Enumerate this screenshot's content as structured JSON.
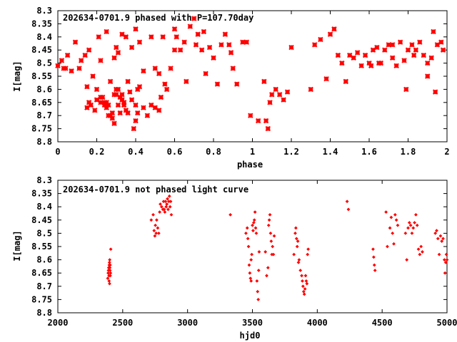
{
  "chart_data": [
    {
      "type": "scatter",
      "title": "202634-0701.9 phased with P=107.70day",
      "xlabel": "phase",
      "ylabel": "I[mag]",
      "xlim": [
        0,
        2
      ],
      "ylim": [
        8.8,
        8.3
      ],
      "y_inverted": true,
      "grid": false,
      "marker": "star",
      "color": "#ff0000",
      "xticks": [
        {
          "value": 0,
          "label": "0"
        },
        {
          "value": 0.2,
          "label": "0.2"
        },
        {
          "value": 0.4,
          "label": "0.4"
        },
        {
          "value": 0.6,
          "label": "0.6"
        },
        {
          "value": 0.8,
          "label": "0.8"
        },
        {
          "value": 1,
          "label": "1"
        },
        {
          "value": 1.2,
          "label": "1.2"
        },
        {
          "value": 1.4,
          "label": "1.4"
        },
        {
          "value": 1.6,
          "label": "1.6"
        },
        {
          "value": 1.8,
          "label": "1.8"
        },
        {
          "value": 2,
          "label": "2"
        }
      ],
      "yticks": [
        {
          "value": 8.3,
          "label": "8.3"
        },
        {
          "value": 8.35,
          "label": "8.35"
        },
        {
          "value": 8.4,
          "label": "8.4"
        },
        {
          "value": 8.45,
          "label": "8.45"
        },
        {
          "value": 8.5,
          "label": "8.5"
        },
        {
          "value": 8.55,
          "label": "8.55"
        },
        {
          "value": 8.6,
          "label": "8.6"
        },
        {
          "value": 8.65,
          "label": "8.65"
        },
        {
          "value": 8.7,
          "label": "8.7"
        },
        {
          "value": 8.75,
          "label": "8.75"
        },
        {
          "value": 8.8,
          "label": "8.8"
        }
      ],
      "points": [
        [
          0.0,
          8.51
        ],
        [
          0.02,
          8.49
        ],
        [
          0.03,
          8.52
        ],
        [
          0.04,
          8.52
        ],
        [
          0.05,
          8.47
        ],
        [
          0.07,
          8.53
        ],
        [
          0.09,
          8.42
        ],
        [
          0.11,
          8.52
        ],
        [
          0.12,
          8.49
        ],
        [
          0.14,
          8.47
        ],
        [
          0.15,
          8.59
        ],
        [
          0.16,
          8.45
        ],
        [
          0.18,
          8.55
        ],
        [
          0.2,
          8.6
        ],
        [
          0.21,
          8.4
        ],
        [
          0.22,
          8.49
        ],
        [
          0.25,
          8.38
        ],
        [
          0.27,
          8.57
        ],
        [
          0.29,
          8.48
        ],
        [
          0.3,
          8.44
        ],
        [
          0.31,
          8.46
        ],
        [
          0.33,
          8.39
        ],
        [
          0.35,
          8.4
        ],
        [
          0.38,
          8.44
        ],
        [
          0.4,
          8.37
        ],
        [
          0.42,
          8.42
        ],
        [
          0.44,
          8.53
        ],
        [
          0.48,
          8.4
        ],
        [
          0.5,
          8.52
        ],
        [
          0.52,
          8.54
        ],
        [
          0.54,
          8.4
        ],
        [
          0.56,
          8.6
        ],
        [
          0.58,
          8.52
        ],
        [
          0.6,
          8.45
        ],
        [
          0.6,
          8.37
        ],
        [
          0.61,
          8.4
        ],
        [
          0.63,
          8.45
        ],
        [
          0.65,
          8.42
        ],
        [
          0.66,
          8.57
        ],
        [
          0.68,
          8.36
        ],
        [
          0.7,
          8.33
        ],
        [
          0.71,
          8.43
        ],
        [
          0.72,
          8.39
        ],
        [
          0.74,
          8.45
        ],
        [
          0.75,
          8.38
        ],
        [
          0.76,
          8.54
        ],
        [
          0.78,
          8.44
        ],
        [
          0.8,
          8.48
        ],
        [
          0.82,
          8.58
        ],
        [
          0.84,
          8.43
        ],
        [
          0.86,
          8.39
        ],
        [
          0.88,
          8.43
        ],
        [
          0.89,
          8.46
        ],
        [
          0.9,
          8.52
        ],
        [
          0.92,
          8.58
        ],
        [
          0.95,
          8.42
        ],
        [
          0.97,
          8.42
        ],
        [
          0.15,
          8.67
        ],
        [
          0.16,
          8.65
        ],
        [
          0.17,
          8.66
        ],
        [
          0.19,
          8.68
        ],
        [
          0.2,
          8.64
        ],
        [
          0.22,
          8.63
        ],
        [
          0.23,
          8.63
        ],
        [
          0.24,
          8.65
        ],
        [
          0.25,
          8.65
        ],
        [
          0.26,
          8.66
        ],
        [
          0.27,
          8.7
        ],
        [
          0.28,
          8.71
        ],
        [
          0.29,
          8.62
        ],
        [
          0.3,
          8.6
        ],
        [
          0.31,
          8.6
        ],
        [
          0.32,
          8.63
        ],
        [
          0.33,
          8.64
        ],
        [
          0.34,
          8.66
        ],
        [
          0.35,
          8.68
        ],
        [
          0.36,
          8.57
        ],
        [
          0.37,
          8.61
        ],
        [
          0.38,
          8.64
        ],
        [
          0.39,
          8.75
        ],
        [
          0.4,
          8.72
        ],
        [
          0.41,
          8.6
        ],
        [
          0.42,
          8.59
        ],
        [
          0.44,
          8.67
        ],
        [
          0.46,
          8.7
        ],
        [
          0.48,
          8.66
        ],
        [
          0.5,
          8.67
        ],
        [
          0.52,
          8.68
        ],
        [
          0.53,
          8.63
        ],
        [
          0.55,
          8.58
        ],
        [
          0.22,
          8.65
        ],
        [
          0.24,
          8.66
        ],
        [
          0.25,
          8.67
        ],
        [
          0.26,
          8.7
        ],
        [
          0.3,
          8.62
        ],
        [
          0.31,
          8.66
        ],
        [
          0.32,
          8.69
        ],
        [
          0.33,
          8.62
        ],
        [
          0.34,
          8.65
        ],
        [
          0.28,
          8.69
        ],
        [
          0.29,
          8.73
        ],
        [
          0.36,
          8.69
        ],
        [
          0.4,
          8.66
        ],
        [
          0.41,
          8.69
        ],
        [
          0.99,
          8.7
        ],
        [
          1.03,
          8.72
        ],
        [
          1.07,
          8.72
        ],
        [
          1.08,
          8.75
        ],
        [
          1.09,
          8.65
        ],
        [
          1.1,
          8.62
        ],
        [
          1.12,
          8.6
        ],
        [
          1.14,
          8.62
        ],
        [
          1.16,
          8.64
        ],
        [
          1.18,
          8.61
        ],
        [
          1.06,
          8.57
        ],
        [
          1.2,
          8.44
        ],
        [
          1.3,
          8.6
        ],
        [
          1.32,
          8.43
        ],
        [
          1.35,
          8.41
        ],
        [
          1.38,
          8.56
        ],
        [
          1.4,
          8.39
        ],
        [
          1.42,
          8.37
        ],
        [
          1.44,
          8.47
        ],
        [
          1.46,
          8.5
        ],
        [
          1.48,
          8.57
        ],
        [
          1.5,
          8.47
        ],
        [
          1.52,
          8.48
        ],
        [
          1.54,
          8.46
        ],
        [
          1.56,
          8.51
        ],
        [
          1.58,
          8.47
        ],
        [
          1.6,
          8.5
        ],
        [
          1.61,
          8.51
        ],
        [
          1.62,
          8.45
        ],
        [
          1.64,
          8.44
        ],
        [
          1.66,
          8.5
        ],
        [
          1.68,
          8.45
        ],
        [
          1.7,
          8.43
        ],
        [
          1.72,
          8.48
        ],
        [
          1.74,
          8.51
        ],
        [
          1.76,
          8.42
        ],
        [
          1.78,
          8.49
        ],
        [
          1.79,
          8.6
        ],
        [
          1.8,
          8.45
        ],
        [
          1.82,
          8.43
        ],
        [
          1.84,
          8.45
        ],
        [
          1.86,
          8.42
        ],
        [
          1.88,
          8.47
        ],
        [
          1.9,
          8.55
        ],
        [
          1.92,
          8.48
        ],
        [
          1.93,
          8.38
        ],
        [
          1.94,
          8.61
        ],
        [
          1.95,
          8.43
        ],
        [
          1.97,
          8.42
        ],
        [
          1.98,
          8.45
        ],
        [
          1.72,
          8.43
        ],
        [
          1.65,
          8.5
        ],
        [
          1.83,
          8.47
        ],
        [
          1.9,
          8.5
        ]
      ]
    },
    {
      "type": "scatter",
      "title": "202634-0701.9 not phased light curve",
      "xlabel": "hjd0",
      "ylabel": "I[mag]",
      "xlim": [
        2000,
        5000
      ],
      "ylim": [
        8.8,
        8.3
      ],
      "y_inverted": true,
      "grid": false,
      "marker": "diamond",
      "color": "#ff0000",
      "xticks": [
        {
          "value": 2000,
          "label": "2000"
        },
        {
          "value": 2500,
          "label": "2500"
        },
        {
          "value": 3000,
          "label": "3000"
        },
        {
          "value": 3500,
          "label": "3500"
        },
        {
          "value": 4000,
          "label": "4000"
        },
        {
          "value": 4500,
          "label": "4500"
        },
        {
          "value": 5000,
          "label": "5000"
        }
      ],
      "yticks": [
        {
          "value": 8.3,
          "label": "8.3"
        },
        {
          "value": 8.35,
          "label": "8.35"
        },
        {
          "value": 8.4,
          "label": "8.4"
        },
        {
          "value": 8.45,
          "label": "8.45"
        },
        {
          "value": 8.5,
          "label": "8.5"
        },
        {
          "value": 8.55,
          "label": "8.55"
        },
        {
          "value": 8.6,
          "label": "8.6"
        },
        {
          "value": 8.65,
          "label": "8.65"
        },
        {
          "value": 8.7,
          "label": "8.7"
        },
        {
          "value": 8.75,
          "label": "8.75"
        },
        {
          "value": 8.8,
          "label": "8.8"
        }
      ],
      "points": [
        [
          2385,
          8.67
        ],
        [
          2388,
          8.65
        ],
        [
          2390,
          8.64
        ],
        [
          2392,
          8.63
        ],
        [
          2394,
          8.66
        ],
        [
          2396,
          8.62
        ],
        [
          2398,
          8.61
        ],
        [
          2400,
          8.6
        ],
        [
          2402,
          8.64
        ],
        [
          2404,
          8.66
        ],
        [
          2395,
          8.68
        ],
        [
          2399,
          8.69
        ],
        [
          2406,
          8.65
        ],
        [
          2408,
          8.56
        ],
        [
          2401,
          8.63
        ],
        [
          2403,
          8.62
        ],
        [
          2720,
          8.45
        ],
        [
          2735,
          8.43
        ],
        [
          2742,
          8.49
        ],
        [
          2748,
          8.51
        ],
        [
          2752,
          8.47
        ],
        [
          2758,
          8.5
        ],
        [
          2762,
          8.45
        ],
        [
          2770,
          8.48
        ],
        [
          2778,
          8.5
        ],
        [
          2785,
          8.42
        ],
        [
          2790,
          8.39
        ],
        [
          2800,
          8.4
        ],
        [
          2810,
          8.41
        ],
        [
          2815,
          8.38
        ],
        [
          2820,
          8.41
        ],
        [
          2825,
          8.42
        ],
        [
          2830,
          8.38
        ],
        [
          2835,
          8.4
        ],
        [
          2840,
          8.39
        ],
        [
          2845,
          8.37
        ],
        [
          2850,
          8.41
        ],
        [
          2855,
          8.38
        ],
        [
          2860,
          8.36
        ],
        [
          2865,
          8.4
        ],
        [
          2870,
          8.38
        ],
        [
          2875,
          8.43
        ],
        [
          3330,
          8.43
        ],
        [
          3450,
          8.5
        ],
        [
          3460,
          8.48
        ],
        [
          3465,
          8.52
        ],
        [
          3470,
          8.55
        ],
        [
          3475,
          8.62
        ],
        [
          3480,
          8.65
        ],
        [
          3485,
          8.67
        ],
        [
          3490,
          8.6
        ],
        [
          3495,
          8.58
        ],
        [
          3500,
          8.47
        ],
        [
          3505,
          8.49
        ],
        [
          3510,
          8.46
        ],
        [
          3515,
          8.45
        ],
        [
          3520,
          8.42
        ],
        [
          3525,
          8.48
        ],
        [
          3530,
          8.5
        ],
        [
          3535,
          8.68
        ],
        [
          3540,
          8.72
        ],
        [
          3545,
          8.75
        ],
        [
          3548,
          8.64
        ],
        [
          3552,
          8.57
        ],
        [
          3490,
          8.68
        ],
        [
          3600,
          8.57
        ],
        [
          3610,
          8.66
        ],
        [
          3620,
          8.63
        ],
        [
          3625,
          8.47
        ],
        [
          3630,
          8.45
        ],
        [
          3635,
          8.43
        ],
        [
          3640,
          8.5
        ],
        [
          3645,
          8.53
        ],
        [
          3650,
          8.58
        ],
        [
          3655,
          8.55
        ],
        [
          3662,
          8.58
        ],
        [
          3668,
          8.51
        ],
        [
          3820,
          8.58
        ],
        [
          3830,
          8.5
        ],
        [
          3835,
          8.48
        ],
        [
          3840,
          8.52
        ],
        [
          3845,
          8.55
        ],
        [
          3850,
          8.53
        ],
        [
          3855,
          8.61
        ],
        [
          3860,
          8.6
        ],
        [
          3870,
          8.64
        ],
        [
          3880,
          8.66
        ],
        [
          3885,
          8.68
        ],
        [
          3890,
          8.7
        ],
        [
          3895,
          8.72
        ],
        [
          3900,
          8.73
        ],
        [
          3905,
          8.71
        ],
        [
          3910,
          8.66
        ],
        [
          3915,
          8.68
        ],
        [
          3920,
          8.69
        ],
        [
          3925,
          8.58
        ],
        [
          3930,
          8.56
        ],
        [
          4230,
          8.38
        ],
        [
          4240,
          8.41
        ],
        [
          4430,
          8.56
        ],
        [
          4435,
          8.59
        ],
        [
          4440,
          8.62
        ],
        [
          4445,
          8.64
        ],
        [
          4530,
          8.42
        ],
        [
          4540,
          8.55
        ],
        [
          4560,
          8.48
        ],
        [
          4570,
          8.44
        ],
        [
          4580,
          8.5
        ],
        [
          4590,
          8.54
        ],
        [
          4600,
          8.43
        ],
        [
          4610,
          8.45
        ],
        [
          4620,
          8.47
        ],
        [
          4680,
          8.5
        ],
        [
          4690,
          8.6
        ],
        [
          4700,
          8.48
        ],
        [
          4710,
          8.46
        ],
        [
          4720,
          8.47
        ],
        [
          4730,
          8.5
        ],
        [
          4740,
          8.48
        ],
        [
          4750,
          8.46
        ],
        [
          4760,
          8.43
        ],
        [
          4770,
          8.47
        ],
        [
          4780,
          8.56
        ],
        [
          4790,
          8.58
        ],
        [
          4800,
          8.55
        ],
        [
          4810,
          8.57
        ],
        [
          4910,
          8.5
        ],
        [
          4920,
          8.49
        ],
        [
          4930,
          8.52
        ],
        [
          4940,
          8.58
        ],
        [
          4950,
          8.51
        ],
        [
          4960,
          8.53
        ],
        [
          4970,
          8.52
        ],
        [
          4980,
          8.6
        ],
        [
          4985,
          8.65
        ],
        [
          4990,
          8.61
        ],
        [
          4995,
          8.58
        ],
        [
          5000,
          8.6
        ]
      ]
    }
  ]
}
